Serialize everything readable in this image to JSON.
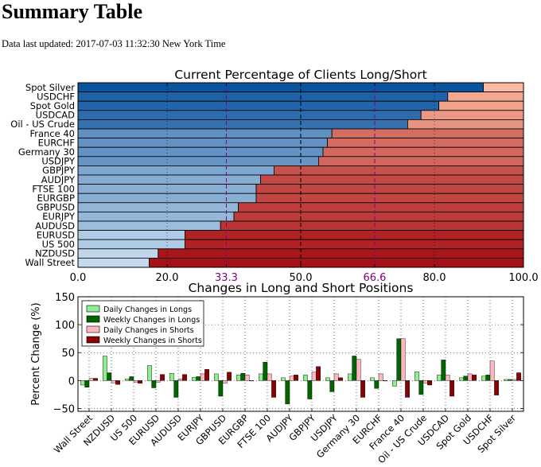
{
  "page": {
    "title": "Summary Table",
    "updated": "Data last updated: 2017-07-03 11:32:30 New York Time"
  },
  "chart_data": [
    {
      "type": "bar",
      "orientation": "horizontal",
      "stacked": true,
      "title": "Current Percentage of Clients Long/Short",
      "categories": [
        "Spot Silver",
        "USDCHF",
        "Spot Gold",
        "USDCAD",
        "Oil - US Crude",
        "France 40",
        "EURCHF",
        "Germany 30",
        "USDJPY",
        "GBPJPY",
        "AUDJPY",
        "FTSE 100",
        "EURGBP",
        "GBPUSD",
        "EURJPY",
        "AUDUSD",
        "EURUSD",
        "US 500",
        "NZDUSD",
        "Wall Street"
      ],
      "series": [
        {
          "values": [
            91,
            83,
            81,
            77,
            74,
            57,
            56,
            55,
            54,
            44,
            41,
            40,
            40,
            36,
            35,
            32,
            24,
            24,
            18,
            16
          ]
        },
        {
          "values": [
            9,
            17,
            19,
            23,
            26,
            43,
            44,
            45,
            46,
            56,
            59,
            60,
            60,
            64,
            65,
            68,
            76,
            76,
            82,
            84
          ]
        }
      ],
      "xlim": [
        0,
        100
      ],
      "xticks": [
        "0.0",
        "20.0",
        "33.3",
        "50.0",
        "66.6",
        "80.0",
        "100.0"
      ],
      "reference_lines": [
        33.3,
        50.0,
        66.6
      ],
      "colors": {
        "long_dark": "#08519c",
        "long_light": "#c6dbef",
        "short_light": "#fcbba1",
        "short_dark": "#a50f15",
        "ref_line_purple": "#800080",
        "ref_line_black": "#000000"
      }
    },
    {
      "type": "bar",
      "title": "Changes in Long and Short Positions",
      "ylabel": "Percent Change (%)",
      "ylim": [
        -55,
        150
      ],
      "yticks": [
        "−50",
        "0",
        "50",
        "100",
        "150"
      ],
      "categories": [
        "Wall Street",
        "NZDUSD",
        "US 500",
        "EURUSD",
        "AUDUSD",
        "EURJPY",
        "GBPUSD",
        "EURGBP",
        "FTSE 100",
        "AUDJPY",
        "GBPJPY",
        "USDJPY",
        "Germany 30",
        "EURCHF",
        "France 40",
        "Oil - US Crude",
        "USDCAD",
        "Spot Gold",
        "USDCHF",
        "Spot Silver"
      ],
      "legend_position": "upper-left",
      "series": [
        {
          "name": "Daily Changes in Longs",
          "color": "#90ee90",
          "values": [
            -8,
            44,
            3,
            27,
            13,
            6,
            12,
            10,
            12,
            5,
            10,
            5,
            12,
            5,
            -10,
            16,
            10,
            5,
            8,
            2
          ]
        },
        {
          "name": "Weekly Changes in Longs",
          "color": "#006400",
          "values": [
            -12,
            14,
            7,
            -13,
            -30,
            7,
            -28,
            13,
            33,
            -42,
            -33,
            -20,
            44,
            -14,
            75,
            -25,
            37,
            8,
            10,
            2
          ]
        },
        {
          "name": "Daily Changes in Shorts",
          "color": "#ffb6c1",
          "values": [
            4,
            -4,
            -3,
            -3,
            3,
            12,
            -5,
            10,
            12,
            8,
            15,
            12,
            38,
            12,
            75,
            -5,
            10,
            12,
            35,
            2
          ]
        },
        {
          "name": "Weekly Changes in Shorts",
          "color": "#8b0000",
          "values": [
            4,
            -7,
            -5,
            11,
            11,
            20,
            15,
            0,
            -30,
            10,
            25,
            5,
            -30,
            0,
            -30,
            -8,
            -28,
            10,
            -26,
            14
          ]
        }
      ]
    }
  ]
}
